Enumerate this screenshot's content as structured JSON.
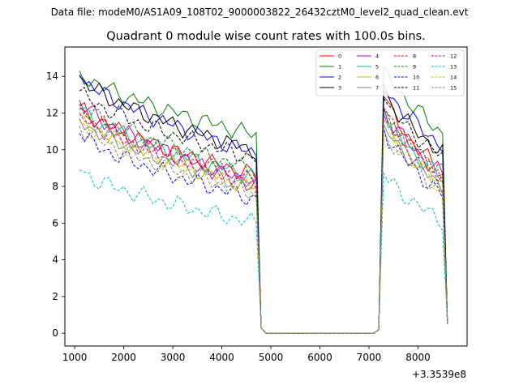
{
  "suptitle": "Data file: modeM0/AS1A09_108T02_9000003822_26432cztM0_level2_quad_clean.evt",
  "chart_data": {
    "type": "line",
    "title": "Quadrant 0 module wise count rates with 100.0s bins.",
    "xlabel": "",
    "ylabel": "",
    "x_offset_label": "+3.3539e8",
    "xlim": [
      800,
      9000
    ],
    "ylim": [
      -0.7,
      15.6
    ],
    "xticks": [
      1000,
      2000,
      3000,
      4000,
      5000,
      6000,
      7000,
      8000
    ],
    "yticks": [
      0,
      2,
      4,
      6,
      8,
      10,
      12,
      14
    ],
    "legend_position": "top-right",
    "segments": [
      {
        "x_start": 1100,
        "x_end": 4700,
        "step": 100
      },
      {
        "x_start": 7300,
        "x_end": 8500,
        "step": 100
      }
    ],
    "series": [
      {
        "name": "0",
        "color": "#ff0000",
        "dash": false,
        "start": 12.4,
        "end": 8.6,
        "start2": 12.9,
        "end2": 8.7
      },
      {
        "name": "1",
        "color": "#008000",
        "dash": false,
        "start": 14.3,
        "end": 10.8,
        "start2": 14.5,
        "end2": 10.9
      },
      {
        "name": "2",
        "color": "#0000ff",
        "dash": false,
        "start": 14.1,
        "end": 9.8,
        "start2": 13.6,
        "end2": 10.2
      },
      {
        "name": "3",
        "color": "#000000",
        "dash": false,
        "start": 14.0,
        "end": 9.9,
        "start2": 13.2,
        "end2": 9.8
      },
      {
        "name": "4",
        "color": "#bf00bf",
        "dash": false,
        "start": 12.7,
        "end": 8.1,
        "start2": 12.3,
        "end2": 8.6
      },
      {
        "name": "5",
        "color": "#00bf9f",
        "dash": false,
        "start": 12.2,
        "end": 8.5,
        "start2": 12.0,
        "end2": 8.4
      },
      {
        "name": "6",
        "color": "#bfbf00",
        "dash": false,
        "start": 11.9,
        "end": 7.9,
        "start2": 11.6,
        "end2": 8.1
      },
      {
        "name": "7",
        "color": "#808080",
        "dash": false,
        "start": 11.7,
        "end": 8.0,
        "start2": 11.4,
        "end2": 8.0
      },
      {
        "name": "8",
        "color": "#ff0000",
        "dash": true,
        "start": 12.3,
        "end": 8.3,
        "start2": 12.3,
        "end2": 8.6
      },
      {
        "name": "9",
        "color": "#008000",
        "dash": true,
        "start": 12.5,
        "end": 8.9,
        "start2": 12.2,
        "end2": 8.8
      },
      {
        "name": "10",
        "color": "#0000ff",
        "dash": true,
        "start": 10.9,
        "end": 7.3,
        "start2": 11.2,
        "end2": 7.5
      },
      {
        "name": "11",
        "color": "#000000",
        "dash": true,
        "start": 13.2,
        "end": 9.5,
        "start2": 12.8,
        "end2": 9.6
      },
      {
        "name": "12",
        "color": "#bf00bf",
        "dash": true,
        "start": 12.0,
        "end": 8.2,
        "start2": 11.9,
        "end2": 8.3
      },
      {
        "name": "13",
        "color": "#00bfbf",
        "dash": true,
        "start": 8.9,
        "end": 6.0,
        "start2": 8.7,
        "end2": 6.1
      },
      {
        "name": "14",
        "color": "#bfbf00",
        "dash": true,
        "start": 11.6,
        "end": 7.8,
        "start2": 11.5,
        "end2": 7.9
      },
      {
        "name": "15",
        "color": "#808080",
        "dash": true,
        "start": 11.3,
        "end": 7.6,
        "start2": 11.1,
        "end2": 7.7
      }
    ]
  }
}
